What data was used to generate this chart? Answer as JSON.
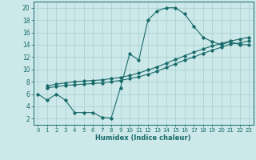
{
  "xlabel": "Humidex (Indice chaleur)",
  "xlim": [
    -0.5,
    23.5
  ],
  "ylim": [
    1,
    21
  ],
  "yticks": [
    2,
    4,
    6,
    8,
    10,
    12,
    14,
    16,
    18,
    20
  ],
  "xticks": [
    0,
    1,
    2,
    3,
    4,
    5,
    6,
    7,
    8,
    9,
    10,
    11,
    12,
    13,
    14,
    15,
    16,
    17,
    18,
    19,
    20,
    21,
    22,
    23
  ],
  "bg_color": "#cce8e8",
  "line_color": "#1a6b6b",
  "line1_x": [
    0,
    1,
    2,
    3,
    4,
    5,
    6,
    7,
    8,
    9,
    10,
    11,
    12,
    13,
    14,
    15,
    16,
    17,
    18,
    19,
    20,
    21,
    22,
    23
  ],
  "line1_y": [
    6,
    5,
    6,
    5,
    3,
    3,
    3,
    2.2,
    2.1,
    7,
    12.5,
    11.5,
    18,
    19.5,
    20,
    20,
    19,
    17,
    15.2,
    14.5,
    14,
    14.5,
    14,
    14
  ],
  "line2_x": [
    1,
    2,
    3,
    4,
    5,
    6,
    7,
    8,
    9,
    10,
    11,
    12,
    13,
    14,
    15,
    16,
    17,
    18,
    19,
    20,
    21,
    22,
    23
  ],
  "line2_y": [
    7.0,
    7.2,
    7.4,
    7.5,
    7.6,
    7.7,
    7.8,
    8.0,
    8.2,
    8.5,
    8.8,
    9.2,
    9.7,
    10.3,
    10.9,
    11.5,
    12.0,
    12.6,
    13.1,
    13.6,
    14.1,
    14.3,
    14.6
  ],
  "line3_x": [
    1,
    2,
    3,
    4,
    5,
    6,
    7,
    8,
    9,
    10,
    11,
    12,
    13,
    14,
    15,
    16,
    17,
    18,
    19,
    20,
    21,
    22,
    23
  ],
  "line3_y": [
    7.3,
    7.6,
    7.8,
    8.0,
    8.1,
    8.2,
    8.3,
    8.5,
    8.7,
    9.0,
    9.4,
    9.9,
    10.4,
    11.0,
    11.6,
    12.2,
    12.8,
    13.3,
    13.8,
    14.2,
    14.6,
    14.9,
    15.2
  ]
}
